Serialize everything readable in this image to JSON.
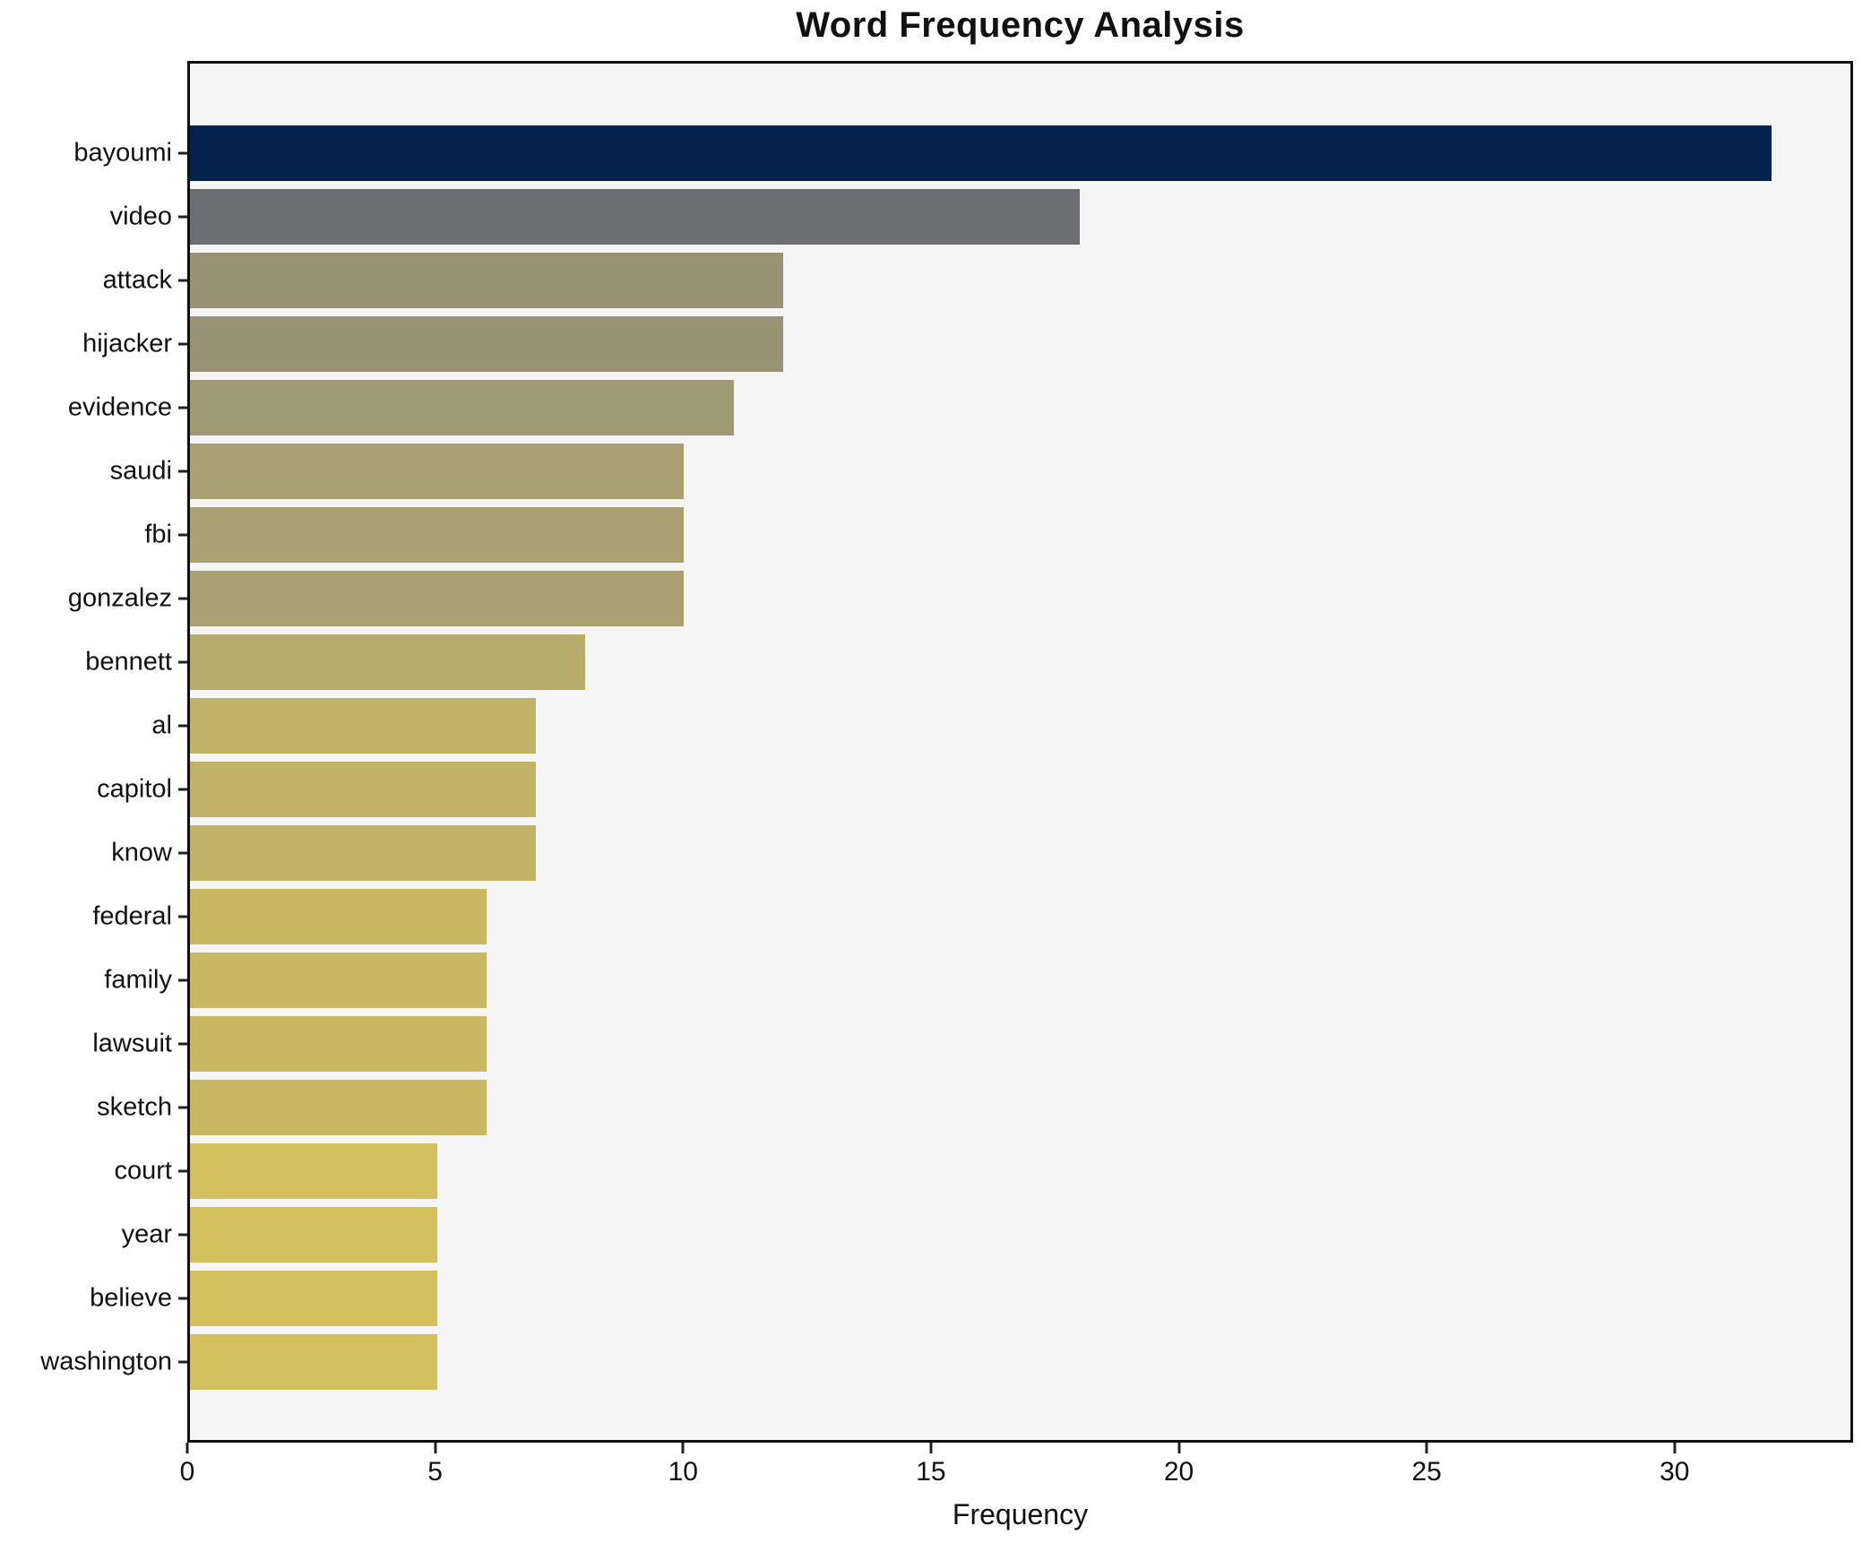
{
  "title": "Word Frequency Analysis",
  "chart_data": {
    "type": "bar",
    "orientation": "horizontal",
    "title": "Word Frequency Analysis",
    "xlabel": "Frequency",
    "ylabel": "",
    "categories": [
      "bayoumi",
      "video",
      "attack",
      "hijacker",
      "evidence",
      "saudi",
      "fbi",
      "gonzalez",
      "bennett",
      "al",
      "capitol",
      "know",
      "federal",
      "family",
      "lawsuit",
      "sketch",
      "court",
      "year",
      "believe",
      "washington"
    ],
    "values": [
      32,
      18,
      12,
      12,
      11,
      10,
      10,
      10,
      8,
      7,
      7,
      7,
      6,
      6,
      6,
      6,
      5,
      5,
      5,
      5
    ],
    "bar_colors": [
      "#05234e",
      "#6d6e72",
      "#999275",
      "#999275",
      "#a09a74",
      "#aaa173",
      "#aaa173",
      "#aaa173",
      "#b5ab6b",
      "#c0b267",
      "#c0b267",
      "#c0b267",
      "#c9b862",
      "#c9b862",
      "#c9b862",
      "#c9b862",
      "#d3c05c",
      "#d3c05c",
      "#d3c05c",
      "#d3c05c"
    ],
    "xlim": [
      0,
      33.6
    ],
    "xticks": [
      0,
      5,
      10,
      15,
      20,
      25,
      30
    ],
    "grid": false,
    "legend": null,
    "plot_background": "#f5f5f6",
    "spine_color": "#0f0f0f"
  }
}
